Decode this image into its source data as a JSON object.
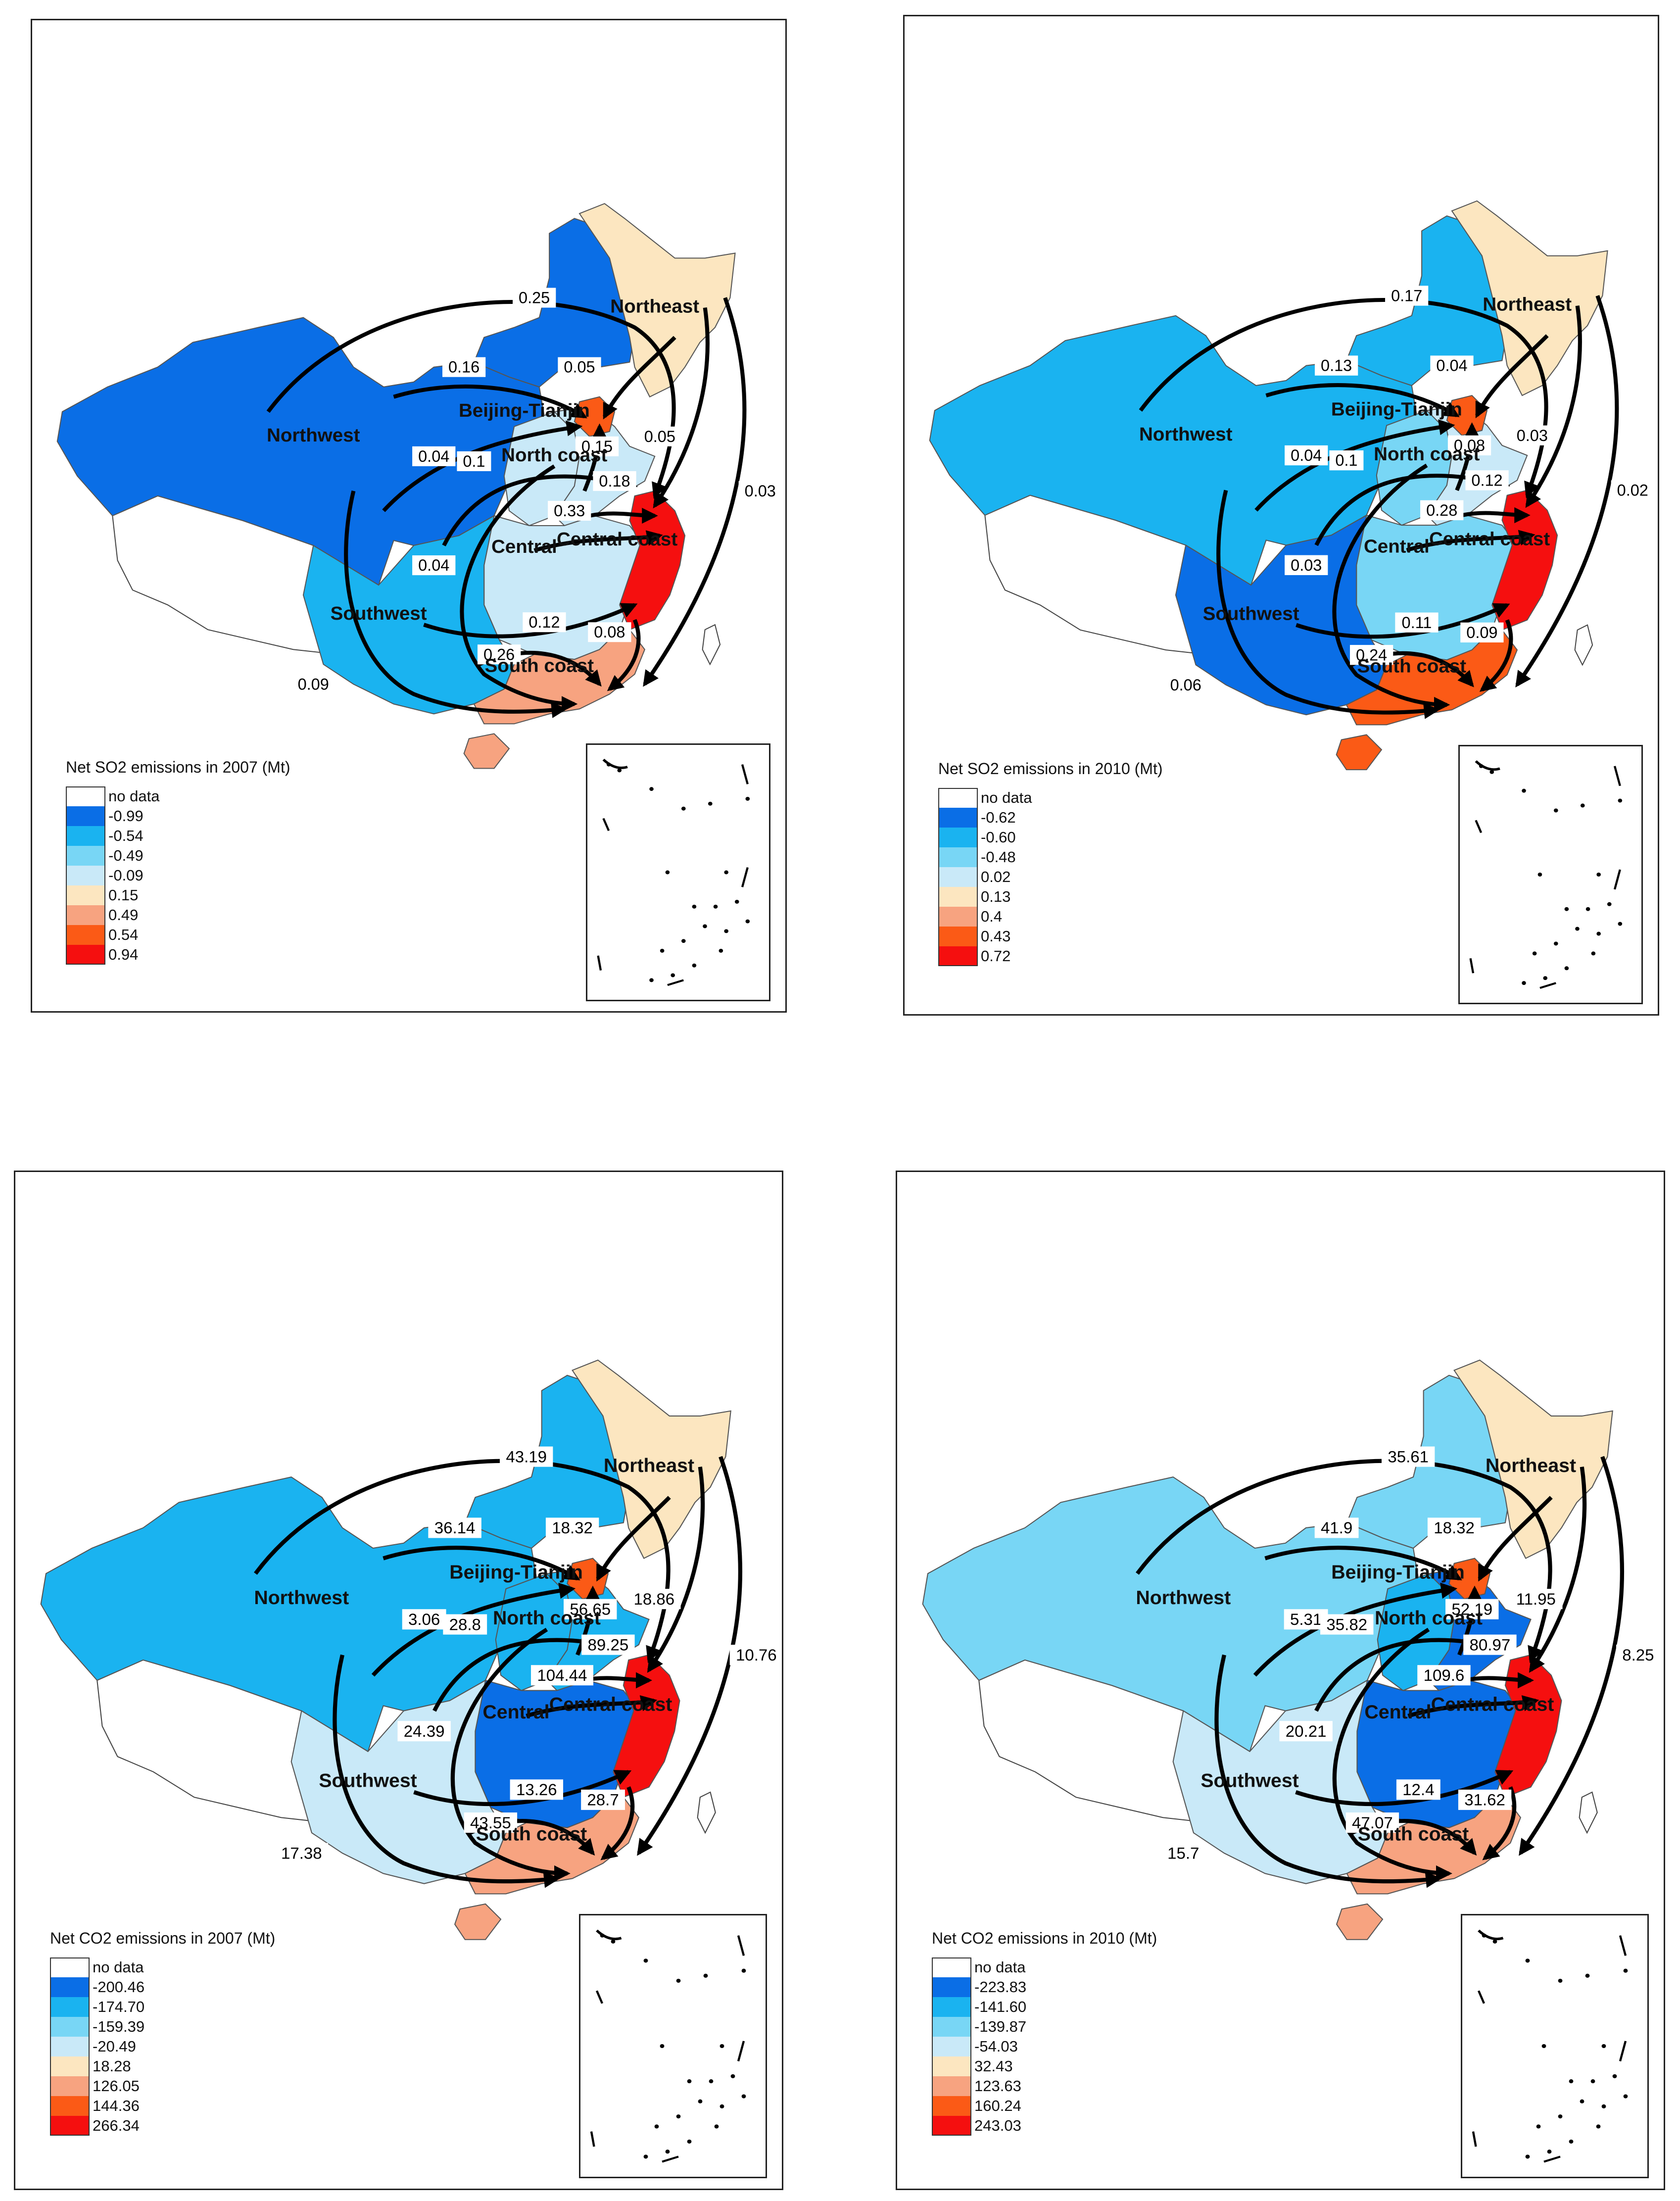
{
  "regions": {
    "northeast": "Northeast",
    "northwest": "Northwest",
    "beijing_tianjin": "Beijing-Tianjin",
    "north_coast": "North coast",
    "central": "Central",
    "central_coast": "Central coast",
    "southwest": "Southwest",
    "south_coast": "South coast"
  },
  "panels": [
    {
      "legend_title": "Net SO2 emissions in 2007 (Mt)",
      "legend": [
        {
          "label": "no data",
          "color": "#ffffff"
        },
        {
          "label": "-0.99",
          "color": "#0a6ee6"
        },
        {
          "label": "-0.54",
          "color": "#1ab3f0"
        },
        {
          "label": "-0.49",
          "color": "#78d6f5"
        },
        {
          "label": "-0.09",
          "color": "#c9e9f8"
        },
        {
          "label": "0.15",
          "color": "#fce6c0"
        },
        {
          "label": "0.49",
          "color": "#f7a380"
        },
        {
          "label": "0.54",
          "color": "#fb5a16"
        },
        {
          "label": "0.94",
          "color": "#f50f0f"
        }
      ],
      "region_colors": {
        "northwest": "#0a6ee6",
        "ne_inner": "#0a6ee6",
        "northeast": "#fce6c0",
        "beijing_tianjin": "#fb5a16",
        "north_coast": "#c9e9f8",
        "central": "#c9e9f8",
        "central_coast": "#f50f0f",
        "southwest": "#1ab3f0",
        "south_coast": "#f7a380",
        "hainan": "#f7a380",
        "shanxi": "#c9e9f8"
      },
      "flows": {
        "ne_top": "0.25",
        "nw_bt": "0.16",
        "ne_bt": "0.05",
        "nc_bt": "0.15",
        "nw_nc": "0.04",
        "nw_cc_inner": "0.1",
        "ne_cc": "0.05",
        "ne_sc": "0.03",
        "nc_cc": "0.18",
        "c_cc": "0.33",
        "nw_sc": "0.04",
        "sw_cc": "0.12",
        "cc_sc": "0.08",
        "c_sc": "0.26",
        "sw_sc": "0.09"
      }
    },
    {
      "legend_title": "Net SO2 emissions in 2010 (Mt)",
      "legend": [
        {
          "label": "no data",
          "color": "#ffffff"
        },
        {
          "label": "-0.62",
          "color": "#0a6ee6"
        },
        {
          "label": "-0.60",
          "color": "#1ab3f0"
        },
        {
          "label": "-0.48",
          "color": "#78d6f5"
        },
        {
          "label": "0.02",
          "color": "#c9e9f8"
        },
        {
          "label": "0.13",
          "color": "#fce6c0"
        },
        {
          "label": "0.4",
          "color": "#f7a380"
        },
        {
          "label": "0.43",
          "color": "#fb5a16"
        },
        {
          "label": "0.72",
          "color": "#f50f0f"
        }
      ],
      "region_colors": {
        "northwest": "#1ab3f0",
        "ne_inner": "#1ab3f0",
        "northeast": "#fce6c0",
        "beijing_tianjin": "#fb5a16",
        "north_coast": "#c9e9f8",
        "central": "#78d6f5",
        "central_coast": "#f50f0f",
        "southwest": "#0a6ee6",
        "south_coast": "#fb5a16",
        "hainan": "#fb5a16",
        "shanxi": "#78d6f5"
      },
      "flows": {
        "ne_top": "0.17",
        "nw_bt": "0.13",
        "ne_bt": "0.04",
        "nc_bt": "0.08",
        "nw_nc": "0.04",
        "nw_cc_inner": "0.1",
        "ne_cc": "0.03",
        "ne_sc": "0.02",
        "nc_cc": "0.12",
        "c_cc": "0.28",
        "nw_sc": "0.03",
        "sw_cc": "0.11",
        "cc_sc": "0.09",
        "c_sc": "0.24",
        "sw_sc": "0.06"
      }
    },
    {
      "legend_title": "Net CO2 emissions in 2007 (Mt)",
      "legend": [
        {
          "label": "no data",
          "color": "#ffffff"
        },
        {
          "label": "-200.46",
          "color": "#0a6ee6"
        },
        {
          "label": "-174.70",
          "color": "#1ab3f0"
        },
        {
          "label": "-159.39",
          "color": "#78d6f5"
        },
        {
          "label": "-20.49",
          "color": "#c9e9f8"
        },
        {
          "label": "18.28",
          "color": "#fce6c0"
        },
        {
          "label": "126.05",
          "color": "#f7a380"
        },
        {
          "label": "144.36",
          "color": "#fb5a16"
        },
        {
          "label": "266.34",
          "color": "#f50f0f"
        }
      ],
      "region_colors": {
        "northwest": "#1ab3f0",
        "ne_inner": "#1ab3f0",
        "northeast": "#fce6c0",
        "beijing_tianjin": "#fb5a16",
        "north_coast": "#1ab3f0",
        "central": "#0a6ee6",
        "central_coast": "#f50f0f",
        "southwest": "#c9e9f8",
        "south_coast": "#f7a380",
        "hainan": "#f7a380",
        "shanxi": "#1ab3f0"
      },
      "flows": {
        "ne_top": "43.19",
        "nw_bt": "36.14",
        "ne_bt": "18.32",
        "nc_bt": "56.65",
        "nw_nc": "3.06",
        "nw_cc_inner": "28.8",
        "ne_cc": "18.86",
        "ne_sc": "10.76",
        "nc_cc": "89.25",
        "c_cc": "104.44",
        "nw_sc": "24.39",
        "sw_cc": "13.26",
        "cc_sc": "28.7",
        "c_sc": "43.55",
        "sw_sc": "17.38"
      }
    },
    {
      "legend_title": "Net CO2 emissions in 2010 (Mt)",
      "legend": [
        {
          "label": "no data",
          "color": "#ffffff"
        },
        {
          "label": "-223.83",
          "color": "#0a6ee6"
        },
        {
          "label": "-141.60",
          "color": "#1ab3f0"
        },
        {
          "label": "-139.87",
          "color": "#78d6f5"
        },
        {
          "label": "-54.03",
          "color": "#c9e9f8"
        },
        {
          "label": "32.43",
          "color": "#fce6c0"
        },
        {
          "label": "123.63",
          "color": "#f7a380"
        },
        {
          "label": "160.24",
          "color": "#fb5a16"
        },
        {
          "label": "243.03",
          "color": "#f50f0f"
        }
      ],
      "region_colors": {
        "northwest": "#78d6f5",
        "ne_inner": "#78d6f5",
        "northeast": "#fce6c0",
        "beijing_tianjin": "#fb5a16",
        "north_coast": "#0a6ee6",
        "central": "#0a6ee6",
        "central_coast": "#f50f0f",
        "southwest": "#c9e9f8",
        "south_coast": "#f7a380",
        "hainan": "#f7a380",
        "shanxi": "#1ab3f0"
      },
      "flows": {
        "ne_top": "35.61",
        "nw_bt": "41.9",
        "ne_bt": "18.32",
        "nc_bt": "52.19",
        "nw_nc": "5.31",
        "nw_cc_inner": "35.82",
        "ne_cc": "11.95",
        "ne_sc": "8.25",
        "nc_cc": "80.97",
        "c_cc": "109.6",
        "nw_sc": "20.21",
        "sw_cc": "12.4",
        "cc_sc": "31.62",
        "c_sc": "47.07",
        "sw_sc": "15.7"
      }
    }
  ]
}
